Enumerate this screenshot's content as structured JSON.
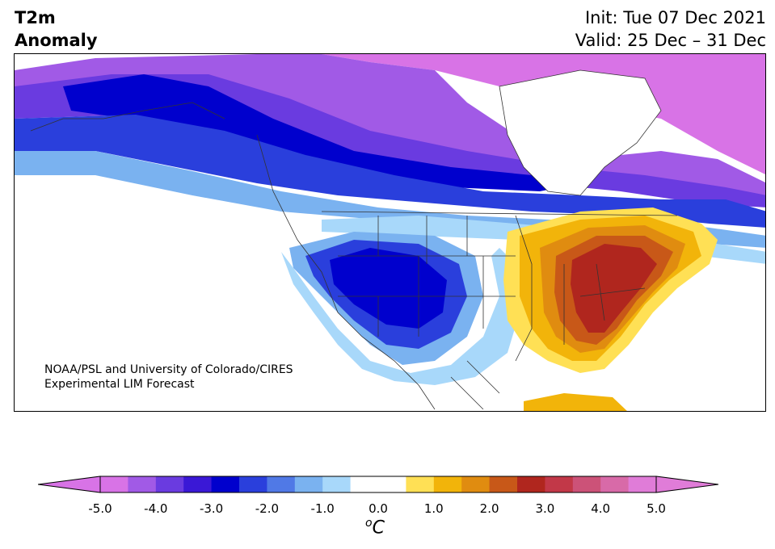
{
  "header": {
    "title_line1": "T2m",
    "title_line2": "Anomaly",
    "init": "Init: Tue 07 Dec 2021",
    "valid": "Valid: 25 Dec – 31 Dec"
  },
  "credit": {
    "line1": "NOAA/PSL and University of Colorado/CIRES",
    "line2": "Experimental LIM Forecast"
  },
  "colorbar": {
    "unit_symbol": "o",
    "unit_letter": "C",
    "ticks": [
      "-5.0",
      "-4.0",
      "-3.0",
      "-2.0",
      "-1.0",
      "0.0",
      "1.0",
      "2.0",
      "3.0",
      "4.0",
      "5.0"
    ],
    "colors": [
      "#d873e6",
      "#a15ae6",
      "#6a3be0",
      "#3a18d6",
      "#0000cd",
      "#2a3fdc",
      "#5079e6",
      "#7ab2f0",
      "#a8d8fa",
      "#ffffff",
      "#ffffff",
      "#ffe055",
      "#f2b40a",
      "#e08c10",
      "#c85818",
      "#b0261e",
      "#c23848",
      "#cc5278",
      "#d86aa8",
      "#e07cd8"
    ],
    "extend_low": "#d873e6",
    "extend_high": "#e07cd8"
  },
  "colors": {
    "land_outline": "#333333",
    "water": "#ffffff"
  }
}
